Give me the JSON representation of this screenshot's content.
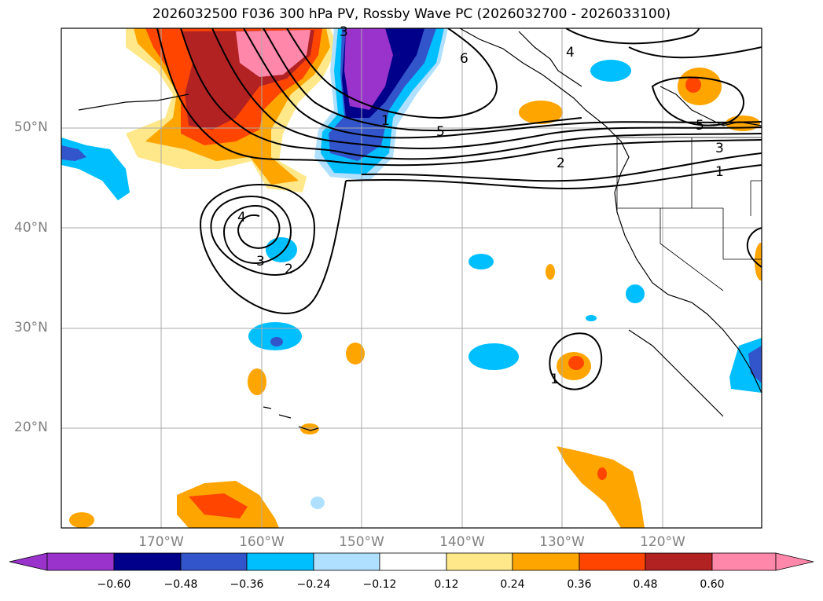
{
  "title": "2026032500 F036 300 hPa PV, Rossby Wave PC (2026032700 - 2026033100)",
  "map": {
    "lat_labels": [
      "50°N",
      "40°N",
      "30°N",
      "20°N"
    ],
    "lon_labels": [
      "170°W",
      "160°W",
      "150°W",
      "140°W",
      "130°W",
      "120°W"
    ],
    "contour_labels": [
      "3",
      "4",
      "6",
      "5",
      "5",
      "2",
      "3",
      "1",
      "4",
      "3",
      "2",
      "1",
      "1"
    ]
  },
  "colorbar": {
    "tick_labels": [
      "−0.60",
      "−0.48",
      "−0.36",
      "−0.24",
      "−0.12",
      "0.12",
      "0.24",
      "0.36",
      "0.48",
      "0.60"
    ],
    "colors": [
      "#9933cc",
      "#00008b",
      "#3355cc",
      "#00bfff",
      "#b0e0ff",
      "#ffffff",
      "#ffe88a",
      "#ffa500",
      "#ff4500",
      "#b22222",
      "#ff88aa",
      "#ff88aa"
    ]
  }
}
